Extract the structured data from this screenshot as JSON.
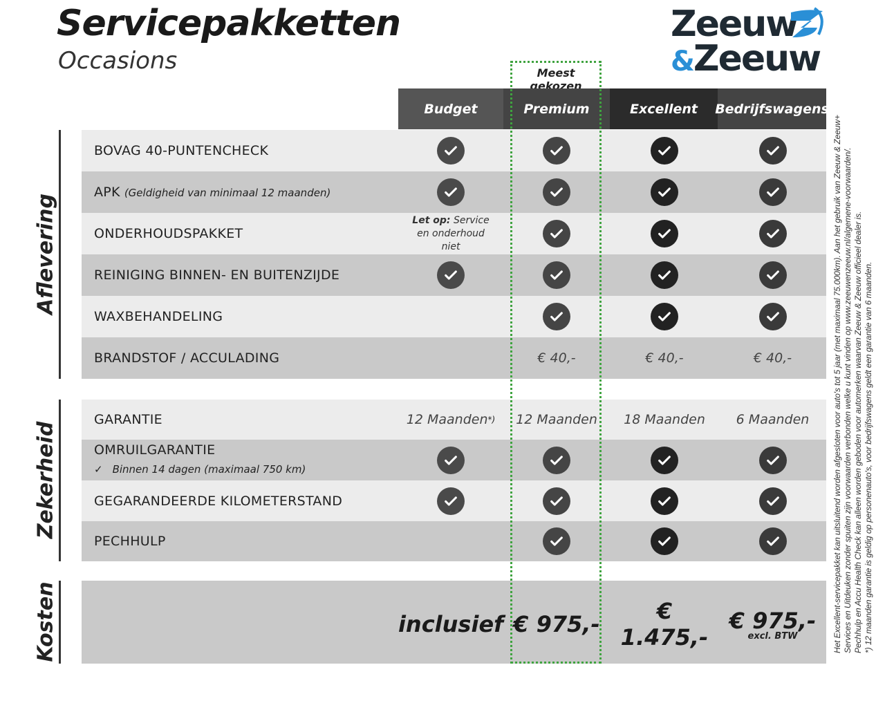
{
  "header": {
    "title": "Servicepakketten",
    "subtitle": "Occasions",
    "logo_text": "Zeeuw & Zeeuw",
    "badge": "Meest gekozen"
  },
  "colors": {
    "accent_dotted": "#3fa33f",
    "logo_blue": "#2a8fd6",
    "row_light": "#ececec",
    "row_dark": "#c9c9c9"
  },
  "columns": [
    {
      "label": "Budget",
      "color": "#555555",
      "check": "#4a4a4a"
    },
    {
      "label": "Premium",
      "color": "#444444",
      "check": "#454545"
    },
    {
      "label": "Excellent",
      "color": "#2b2b2b",
      "check": "#222222"
    },
    {
      "label": "Bedrijfswagens",
      "color": "#444444",
      "check": "#3a3a3a"
    }
  ],
  "sections": [
    {
      "title": "Aflevering",
      "rows": [
        {
          "label": "BOVAG 40-PUNTENCHECK",
          "cells": [
            "check",
            "check",
            "check",
            "check"
          ]
        },
        {
          "label": "APK",
          "sub": "(Geldigheid van minimaal 12 maanden)",
          "cells": [
            "check",
            "check",
            "check",
            "check"
          ]
        },
        {
          "label": "ONDERHOUDSPAKKET",
          "cells": [
            "note",
            "check",
            "check",
            "check"
          ],
          "note_bold": "Let op:",
          "note_text": "Service en onderhoud niet"
        },
        {
          "label": "REINIGING BINNEN- EN BUITENZIJDE",
          "cells": [
            "check",
            "check",
            "check",
            "check"
          ]
        },
        {
          "label": "WAXBEHANDELING",
          "cells": [
            "",
            "check",
            "check",
            "check"
          ]
        },
        {
          "label": "BRANDSTOF / ACCULADING",
          "cells": [
            "",
            "€ 40,-",
            "€ 40,-",
            "€ 40,-"
          ]
        }
      ]
    },
    {
      "title": "Zekerheid",
      "rows": [
        {
          "label": "GARANTIE",
          "cells": [
            "12 Maanden",
            "12 Maanden",
            "18 Maanden",
            "6 Maanden"
          ],
          "footnote_mark": "*)"
        },
        {
          "label": "OMRUILGARANTIE",
          "sub": "Binnen 14 dagen (maximaal 750 km)",
          "cells": [
            "check",
            "check",
            "check",
            "check"
          ]
        },
        {
          "label": "GEGARANDEERDE KILOMETERSTAND",
          "cells": [
            "check",
            "check",
            "check",
            "check"
          ]
        },
        {
          "label": "PECHHULP",
          "cells": [
            "",
            "check",
            "check",
            "check"
          ]
        }
      ]
    },
    {
      "title": "Kosten",
      "rows": [
        {
          "cells": [
            "inclusief",
            "€ 975,-",
            "€ 1.475,-",
            "€ 975,-"
          ],
          "sub_last": "excl. BTW"
        }
      ]
    }
  ],
  "footnotes": [
    "Het Excellent-servicepakket kan uitsluitend worden afgesloten voor auto's tot 5 jaar (met maximaal 75.000km). Aan het gebruik van Zeeuw & Zeeuw+",
    "Services en Uitdeuken zonder spuiten zijn voorwaarden verbonden welke u kunt vinden op www.zeeuwenzeeuw.nl/algemene-voorwaarden/.",
    "Pechhulp en Accu Health Check kan alleen worden geboden voor automerken waarvan Zeeuw & Zeeuw officieel dealer is.",
    "*) 12 maanden garantie is geldig op personenauto's, voor bedrijfswagens geldt een garantie van 6 maanden."
  ]
}
